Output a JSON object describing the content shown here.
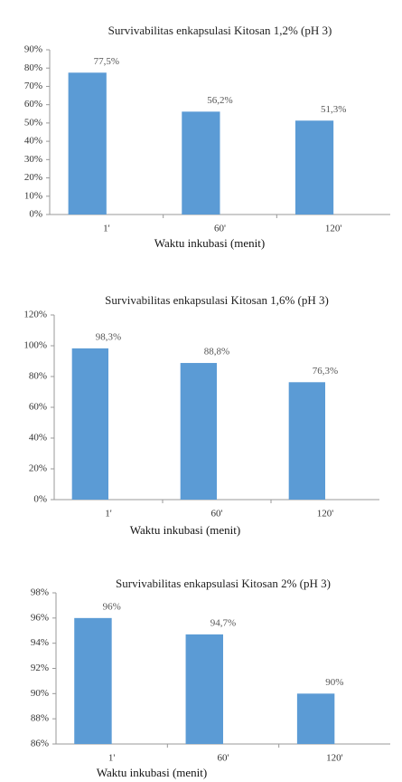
{
  "chart_data": [
    {
      "type": "bar",
      "title": "Survivabilitas enkapsulasi Kitosan 1,2% (pH 3)",
      "x_label": "Waktu inkubasi (menit)",
      "categories": [
        "1'",
        "60'",
        "120'"
      ],
      "values": [
        77.5,
        56.2,
        51.3
      ],
      "value_labels": [
        "77,5%",
        "56,2%",
        "51,3%"
      ],
      "color": "#5b9bd5",
      "ylim": [
        0,
        90
      ],
      "yticks": [
        {
          "value": 0,
          "label": "0%"
        },
        {
          "value": 10,
          "label": "10%"
        },
        {
          "value": 20,
          "label": "20%"
        },
        {
          "value": 30,
          "label": "30%"
        },
        {
          "value": 40,
          "label": "40%"
        },
        {
          "value": 50,
          "label": "50%"
        },
        {
          "value": 60,
          "label": "60%"
        },
        {
          "value": 70,
          "label": "70%"
        },
        {
          "value": 80,
          "label": "80%"
        },
        {
          "value": 90,
          "label": "90%"
        }
      ]
    },
    {
      "type": "bar",
      "title": "Survivabilitas enkapsulasi Kitosan 1,6% (pH 3)",
      "x_label": "Waktu inkubasi (menit)",
      "categories": [
        "1'",
        "60'",
        "120'"
      ],
      "values": [
        98.3,
        88.8,
        76.3
      ],
      "value_labels": [
        "98,3%",
        "88,8%",
        "76,3%"
      ],
      "color": "#5b9bd5",
      "ylim": [
        0,
        120
      ],
      "yticks": [
        {
          "value": 0,
          "label": "0%"
        },
        {
          "value": 20,
          "label": "20%"
        },
        {
          "value": 40,
          "label": "40%"
        },
        {
          "value": 60,
          "label": "60%"
        },
        {
          "value": 80,
          "label": "80%"
        },
        {
          "value": 100,
          "label": "100%"
        },
        {
          "value": 120,
          "label": "120%"
        }
      ]
    },
    {
      "type": "bar",
      "title": "Survivabilitas enkapsulasi Kitosan 2% (pH 3)",
      "x_label": "Waktu inkubasi (menit)",
      "categories": [
        "1'",
        "60'",
        "120'"
      ],
      "values": [
        96,
        94.7,
        90
      ],
      "value_labels": [
        "96%",
        "94,7%",
        "90%"
      ],
      "color": "#5b9bd5",
      "ylim": [
        86,
        98
      ],
      "yticks": [
        {
          "value": 86,
          "label": "86%"
        },
        {
          "value": 88,
          "label": "88%"
        },
        {
          "value": 90,
          "label": "90%"
        },
        {
          "value": 92,
          "label": "92%"
        },
        {
          "value": 94,
          "label": "94%"
        },
        {
          "value": 96,
          "label": "96%"
        },
        {
          "value": 98,
          "label": "98%"
        }
      ]
    }
  ]
}
